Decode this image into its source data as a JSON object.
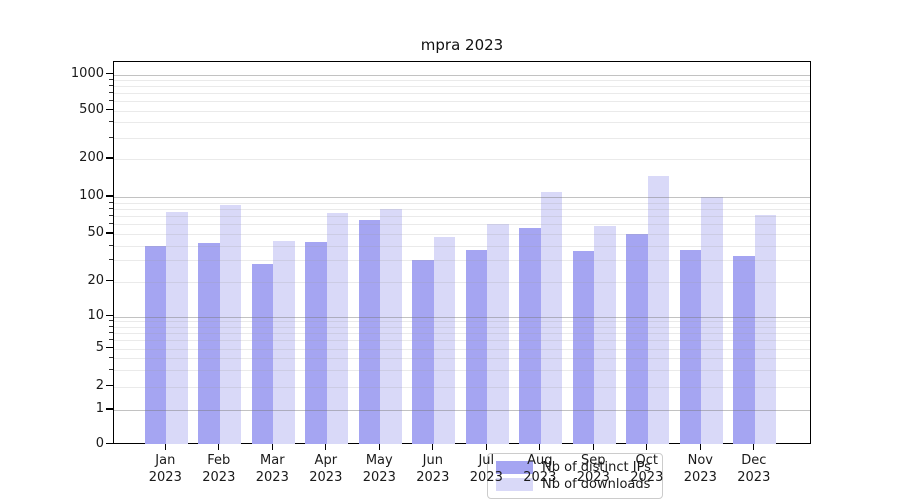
{
  "figure": {
    "title": "mpra 2023"
  },
  "chart_data": {
    "type": "bar",
    "title": "mpra 2023",
    "categories": [
      "Jan",
      "Feb",
      "Mar",
      "Apr",
      "May",
      "Jun",
      "Jul",
      "Aug",
      "Sep",
      "Oct",
      "Nov",
      "Dec"
    ],
    "year_label": "2023",
    "series": [
      {
        "name": "Nb of distinct IPs",
        "color": "#a5a5f2",
        "values": [
          40,
          42,
          28,
          43,
          65,
          30,
          37,
          56,
          36,
          50,
          37,
          33
        ]
      },
      {
        "name": "Nb of downloads",
        "color": "#d9d9f8",
        "values": [
          76,
          86,
          44,
          74,
          80,
          47,
          60,
          110,
          58,
          146,
          100,
          71
        ]
      }
    ],
    "xlabel": "",
    "ylabel": "",
    "y_scale": "symlog",
    "y_ticks": [
      "1000",
      "500",
      "200",
      "100",
      "50",
      "20",
      "10",
      "5",
      "2",
      "1",
      "0"
    ],
    "ylim": [
      0,
      1250
    ],
    "grid": "major and minor horizontal gridlines drawn over bars",
    "legend_position": "inside plot, lower center"
  }
}
